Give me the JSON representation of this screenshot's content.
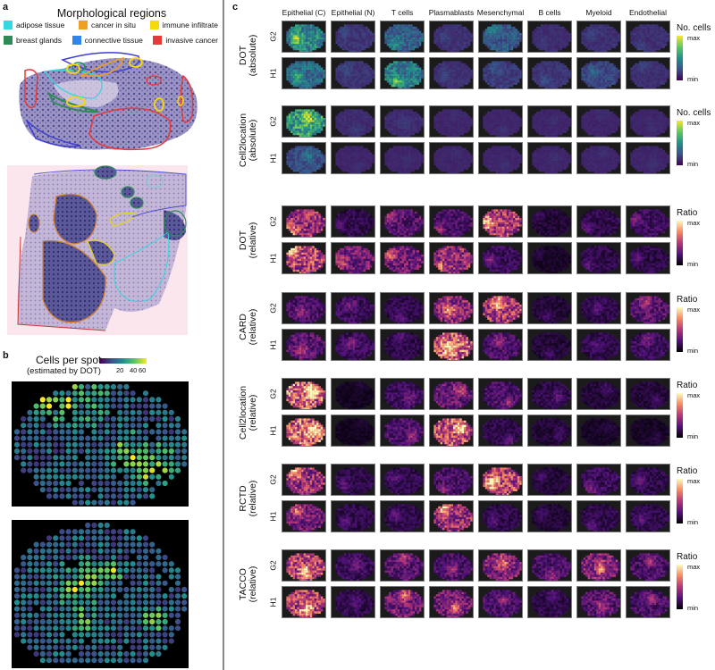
{
  "panel_a": {
    "letter": "a",
    "title": "Morphological regions",
    "legend": [
      {
        "label": "adipose tissue",
        "color": "#35d7e0"
      },
      {
        "label": "cancer in situ",
        "color": "#f0a020"
      },
      {
        "label": "immune infiltrate",
        "color": "#f5d90a"
      },
      {
        "label": "breast glands",
        "color": "#2e8b57"
      },
      {
        "label": "connective tissue",
        "color": "#2f86e8"
      },
      {
        "label": "invasive cancer",
        "color": "#e53a3a"
      }
    ],
    "images": [
      {
        "name": "histology-section-1"
      },
      {
        "name": "histology-section-2"
      }
    ]
  },
  "panel_b": {
    "letter": "b",
    "title": "Cells per spot",
    "subtitle": "(estimated by DOT)",
    "colorbar_ticks": [
      "20",
      "40",
      "60"
    ],
    "maps": [
      {
        "name": "spot-map-1"
      },
      {
        "name": "spot-map-2"
      }
    ]
  },
  "panel_c": {
    "letter": "c",
    "columns": [
      "Epithelial (C)",
      "Epithelial (N)",
      "T cells",
      "Plasmablasts",
      "Mesenchymal",
      "B cells",
      "Myeloid",
      "Endothelial"
    ],
    "rows": [
      {
        "method": "DOT",
        "mode": "(absolute)",
        "samples": [
          "G2",
          "H1"
        ],
        "colormap": "viridis",
        "cbar_label": "No. cells",
        "cbar_max": "max",
        "cbar_min": "min"
      },
      {
        "method": "Cell2location",
        "mode": "(absolute)",
        "samples": [
          "G2",
          "H1"
        ],
        "colormap": "viridis",
        "cbar_label": "No. cells",
        "cbar_max": "max",
        "cbar_min": "min"
      },
      {
        "method": "DOT",
        "mode": "(relative)",
        "samples": [
          "G2",
          "H1"
        ],
        "colormap": "magma",
        "cbar_label": "Ratio",
        "cbar_max": "max",
        "cbar_min": "min"
      },
      {
        "method": "CARD",
        "mode": "(relative)",
        "samples": [
          "G2",
          "H1"
        ],
        "colormap": "magma",
        "cbar_label": "Ratio",
        "cbar_max": "max",
        "cbar_min": "min"
      },
      {
        "method": "Cell2location",
        "mode": "(relative)",
        "samples": [
          "G2",
          "H1"
        ],
        "colormap": "magma",
        "cbar_label": "Ratio",
        "cbar_max": "max",
        "cbar_min": "min"
      },
      {
        "method": "RCTD",
        "mode": "(relative)",
        "samples": [
          "G2",
          "H1"
        ],
        "colormap": "magma",
        "cbar_label": "Ratio",
        "cbar_max": "max",
        "cbar_min": "min"
      },
      {
        "method": "TACCO",
        "mode": "(relative)",
        "samples": [
          "G2",
          "H1"
        ],
        "colormap": "magma",
        "cbar_label": "Ratio",
        "cbar_max": "max",
        "cbar_min": "min"
      }
    ],
    "intensity": [
      [
        [
          0.55,
          0.12,
          0.35,
          0.1,
          0.3,
          0.08,
          0.1,
          0.1
        ],
        [
          0.4,
          0.12,
          0.5,
          0.1,
          0.15,
          0.12,
          0.2,
          0.1
        ]
      ],
      [
        [
          0.7,
          0.08,
          0.08,
          0.05,
          0.05,
          0.05,
          0.05,
          0.05
        ],
        [
          0.25,
          0.05,
          0.05,
          0.05,
          0.05,
          0.05,
          0.05,
          0.05
        ]
      ],
      [
        [
          0.6,
          0.2,
          0.35,
          0.3,
          0.65,
          0.15,
          0.2,
          0.25
        ],
        [
          0.7,
          0.45,
          0.45,
          0.55,
          0.25,
          0.1,
          0.2,
          0.2
        ]
      ],
      [
        [
          0.3,
          0.25,
          0.2,
          0.55,
          0.65,
          0.15,
          0.2,
          0.35
        ],
        [
          0.35,
          0.25,
          0.2,
          0.8,
          0.3,
          0.15,
          0.2,
          0.25
        ]
      ],
      [
        [
          0.85,
          0.08,
          0.25,
          0.4,
          0.3,
          0.2,
          0.15,
          0.15
        ],
        [
          0.85,
          0.08,
          0.3,
          0.75,
          0.2,
          0.15,
          0.1,
          0.1
        ]
      ],
      [
        [
          0.6,
          0.2,
          0.2,
          0.3,
          0.7,
          0.15,
          0.25,
          0.2
        ],
        [
          0.45,
          0.2,
          0.2,
          0.6,
          0.2,
          0.15,
          0.2,
          0.2
        ]
      ],
      [
        [
          0.7,
          0.25,
          0.35,
          0.3,
          0.5,
          0.3,
          0.5,
          0.3
        ],
        [
          0.7,
          0.2,
          0.45,
          0.45,
          0.3,
          0.2,
          0.35,
          0.3
        ]
      ]
    ]
  }
}
